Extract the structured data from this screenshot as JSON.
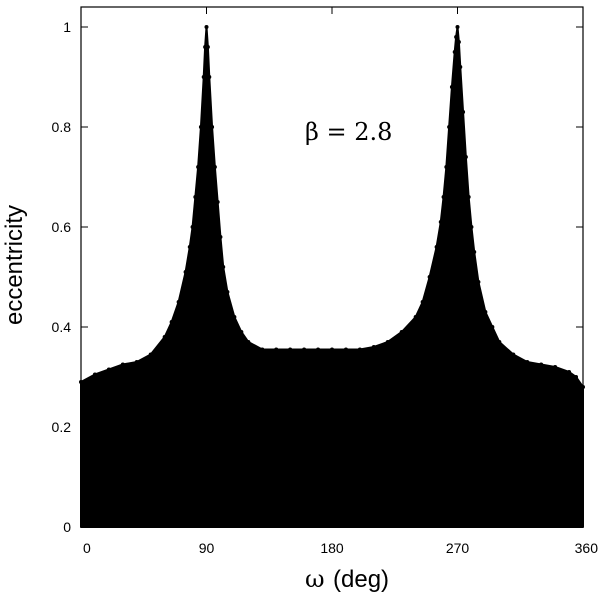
{
  "chart_data": {
    "type": "scatter",
    "title": "",
    "xlabel_symbol": "ω",
    "xlabel_unit": "(deg)",
    "ylabel": "eccentricity",
    "annotation": "β = 2.8",
    "xlim": [
      0,
      360
    ],
    "ylim": [
      0,
      1.04
    ],
    "xticks": [
      0,
      90,
      180,
      270,
      360
    ],
    "xtick_labels": [
      "0",
      "90",
      "180",
      "270",
      "360"
    ],
    "yticks": [
      0,
      0.2,
      0.4,
      0.6,
      0.8,
      1.0
    ],
    "ytick_labels": [
      "0",
      "0.2",
      "0.4",
      "0.6",
      "0.8",
      "1"
    ],
    "grid": false,
    "marker_color": "#000000",
    "series": [
      {
        "envelope_x": [
          0,
          10,
          20,
          30,
          40,
          50,
          60,
          65,
          70,
          75,
          78,
          80,
          82,
          84,
          86,
          88,
          89,
          90,
          91,
          92,
          94,
          96,
          98,
          100,
          102,
          105,
          110,
          115,
          120,
          130,
          140,
          150,
          160,
          170,
          180,
          190,
          200,
          210,
          220,
          230,
          240,
          245,
          250,
          255,
          258,
          260,
          262,
          264,
          266,
          268,
          269,
          270,
          271,
          272,
          274,
          276,
          278,
          280,
          282,
          285,
          290,
          295,
          300,
          310,
          320,
          330,
          340,
          350,
          355,
          360
        ],
        "envelope_y": [
          0.29,
          0.305,
          0.315,
          0.325,
          0.33,
          0.345,
          0.38,
          0.41,
          0.45,
          0.51,
          0.56,
          0.6,
          0.66,
          0.72,
          0.8,
          0.9,
          0.96,
          1.0,
          0.96,
          0.9,
          0.8,
          0.72,
          0.65,
          0.58,
          0.52,
          0.47,
          0.42,
          0.39,
          0.37,
          0.355,
          0.355,
          0.355,
          0.355,
          0.355,
          0.355,
          0.355,
          0.355,
          0.36,
          0.37,
          0.39,
          0.42,
          0.45,
          0.5,
          0.56,
          0.61,
          0.66,
          0.72,
          0.8,
          0.88,
          0.95,
          0.98,
          1.0,
          0.97,
          0.92,
          0.83,
          0.74,
          0.66,
          0.6,
          0.55,
          0.49,
          0.43,
          0.4,
          0.37,
          0.345,
          0.33,
          0.325,
          0.32,
          0.31,
          0.3,
          0.28
        ]
      }
    ]
  }
}
